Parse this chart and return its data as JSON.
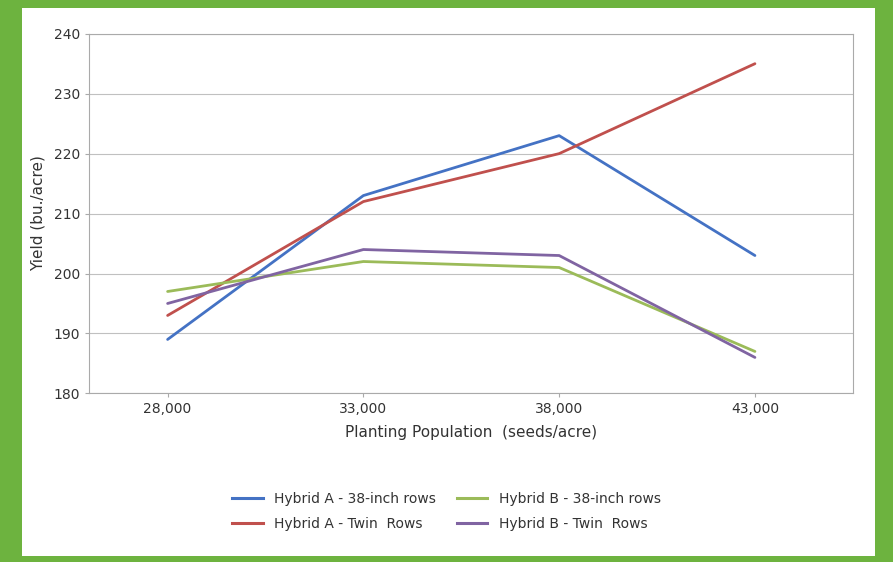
{
  "x": [
    28000,
    33000,
    38000,
    43000
  ],
  "series": [
    {
      "label": "Hybrid A - 38-inch rows",
      "y": [
        189,
        213,
        223,
        203
      ],
      "color": "#4472C4",
      "linewidth": 2.0
    },
    {
      "label": "Hybrid A - Twin  Rows",
      "y": [
        193,
        212,
        220,
        235
      ],
      "color": "#C0504D",
      "linewidth": 2.0
    },
    {
      "label": "Hybrid B - 38-inch rows",
      "y": [
        197,
        202,
        201,
        187
      ],
      "color": "#9BBB59",
      "linewidth": 2.0
    },
    {
      "label": "Hybrid B - Twin  Rows",
      "y": [
        195,
        204,
        203,
        186
      ],
      "color": "#8064A2",
      "linewidth": 2.0
    }
  ],
  "xlabel": "Planting Population  (seeds/acre)",
  "ylabel": "Yield (bu./acre)",
  "ylim": [
    180,
    240
  ],
  "yticks": [
    180,
    190,
    200,
    210,
    220,
    230,
    240
  ],
  "xticks": [
    28000,
    33000,
    38000,
    43000
  ],
  "xtick_labels": [
    "28,000",
    "33,000",
    "38,000",
    "43,000"
  ],
  "plot_bg": "#FFFFFF",
  "inner_panel_bg": "#FFFFFF",
  "outer_background": "#6DB33F",
  "grid_color": "#C0C0C0",
  "axis_fontsize": 11,
  "tick_fontsize": 10,
  "legend_fontsize": 10,
  "xlim": [
    26000,
    45500
  ]
}
